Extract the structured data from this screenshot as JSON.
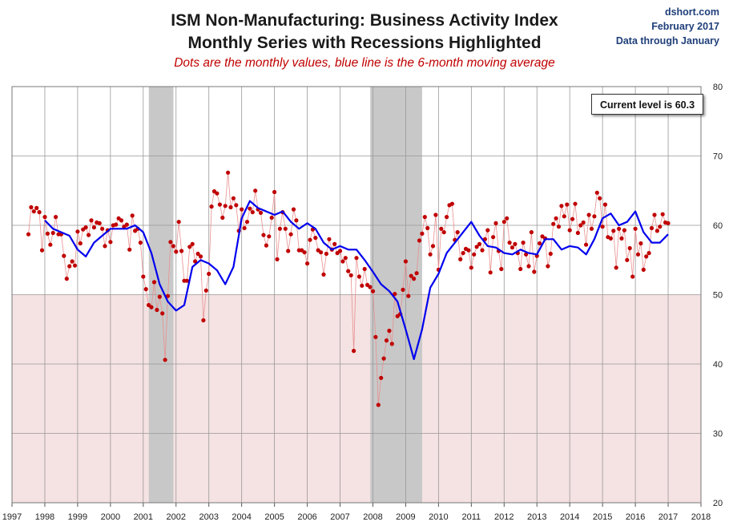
{
  "source": {
    "site": "dshort.com",
    "date": "February 2017",
    "through": "Data through January"
  },
  "chart_data": {
    "type": "line",
    "title": "ISM Non-Manufacturing: Business Activity Index",
    "title_line2": "Monthly Series with Recessions Highlighted",
    "subtitle": "Dots are the monthly values, blue line is the 6-month moving average",
    "annotation": "Current level is 60.3",
    "xlim": [
      1997,
      2018
    ],
    "ylim": [
      20,
      80
    ],
    "x_ticks": [
      "1997",
      "1998",
      "1999",
      "2000",
      "2001",
      "2002",
      "2003",
      "2004",
      "2005",
      "2006",
      "2007",
      "2008",
      "2009",
      "2010",
      "2011",
      "2012",
      "2013",
      "2014",
      "2015",
      "2016",
      "2017",
      "2018"
    ],
    "y_ticks": [
      "20",
      "30",
      "40",
      "50",
      "60",
      "70",
      "80"
    ],
    "contraction_below": 50,
    "recessions": [
      [
        2001.17,
        2001.92
      ],
      [
        2007.92,
        2009.5
      ]
    ],
    "colors": {
      "dots": "#c00000",
      "ma": "#0000ee",
      "recession": "#c8c8c8",
      "contraction": "#f5e2e2",
      "grid": "#999999"
    },
    "series": [
      {
        "name": "Monthly values",
        "start": 1997.5,
        "step": 0.08333,
        "values": [
          58.7,
          62.6,
          62.0,
          62.5,
          61.9,
          56.4,
          61.2,
          58.8,
          57.2,
          58.9,
          61.2,
          58.7,
          58.7,
          55.6,
          52.3,
          54.1,
          54.8,
          54.2,
          59.1,
          57.4,
          59.4,
          59.7,
          58.6,
          60.7,
          59.7,
          60.4,
          60.3,
          59.5,
          57.0,
          59.3,
          57.6,
          60.0,
          60.1,
          61.0,
          60.7,
          59.8,
          60.1,
          56.5,
          61.4,
          59.2,
          59.5,
          57.5,
          52.6,
          50.8,
          48.5,
          48.2,
          51.8,
          47.8,
          49.7,
          47.3,
          40.6,
          49.8,
          57.6,
          57.0,
          56.2,
          60.5,
          56.3,
          52.0,
          52.0,
          56.9,
          57.3,
          54.8,
          55.9,
          55.5,
          46.3,
          50.6,
          53.0,
          62.7,
          64.9,
          64.6,
          63.0,
          61.1,
          62.8,
          67.6,
          62.6,
          63.9,
          62.9,
          59.2,
          62.3,
          59.6,
          60.5,
          62.4,
          61.9,
          65.0,
          62.3,
          61.8,
          58.6,
          57.1,
          58.4,
          61.1,
          64.8,
          55.1,
          59.5,
          61.9,
          59.5,
          56.3,
          58.7,
          62.3,
          60.7,
          56.4,
          56.4,
          56.1,
          54.5,
          57.9,
          59.4,
          58.2,
          56.4,
          56.1,
          52.9,
          55.9,
          58.0,
          56.5,
          57.3,
          56.0,
          56.3,
          54.8,
          55.3,
          53.4,
          52.8,
          41.9,
          55.3,
          52.6,
          51.3,
          53.7,
          51.4,
          51.1,
          50.5,
          43.9,
          34.1,
          38.0,
          40.8,
          43.4,
          44.8,
          42.9,
          50.1,
          46.9,
          47.2,
          50.7,
          54.8,
          49.8,
          52.7,
          52.3,
          53.1,
          57.8,
          58.8,
          61.2,
          59.6,
          55.8,
          57.0,
          61.5,
          53.6,
          59.5,
          59.0,
          61.2,
          62.9,
          63.1,
          57.9,
          59.0,
          55.1,
          56.0,
          56.6,
          56.4,
          53.9,
          55.8,
          56.9,
          57.3,
          56.4,
          58.0,
          59.3,
          53.2,
          58.3,
          60.3,
          56.3,
          53.7,
          60.5,
          61.0,
          57.5,
          56.8,
          57.3,
          56.0,
          53.7,
          57.5,
          55.8,
          54.1,
          59.0,
          53.3,
          55.6,
          57.4,
          58.4,
          58.1,
          54.1,
          55.9,
          60.2,
          61.0,
          59.8,
          62.8,
          61.3,
          63.0,
          59.3,
          60.9,
          63.1,
          58.9,
          60.0,
          60.4,
          57.2,
          61.5,
          59.5,
          61.3,
          64.7,
          63.9,
          59.8,
          63.0,
          58.3,
          58.1,
          59.2,
          53.9,
          59.5,
          58.1,
          59.3,
          55.0,
          56.7,
          52.6,
          59.5,
          55.8,
          57.4,
          53.6,
          55.5,
          56.0,
          59.6,
          61.5,
          59.2,
          59.8,
          61.6,
          60.4,
          60.3
        ]
      },
      {
        "name": "6-month moving average",
        "x": [
          1998.0,
          1998.25,
          1998.5,
          1998.75,
          1999.0,
          1999.25,
          1999.5,
          1999.75,
          2000.0,
          2000.25,
          2000.5,
          2000.75,
          2001.0,
          2001.25,
          2001.5,
          2001.75,
          2002.0,
          2002.25,
          2002.5,
          2002.75,
          2003.0,
          2003.25,
          2003.5,
          2003.75,
          2004.0,
          2004.25,
          2004.5,
          2004.75,
          2005.0,
          2005.25,
          2005.5,
          2005.75,
          2006.0,
          2006.25,
          2006.5,
          2006.75,
          2007.0,
          2007.25,
          2007.5,
          2007.75,
          2008.0,
          2008.25,
          2008.5,
          2008.75,
          2009.0,
          2009.25,
          2009.5,
          2009.75,
          2010.0,
          2010.25,
          2010.5,
          2010.75,
          2011.0,
          2011.25,
          2011.5,
          2011.75,
          2012.0,
          2012.25,
          2012.5,
          2012.75,
          2013.0,
          2013.25,
          2013.5,
          2013.75,
          2014.0,
          2014.25,
          2014.5,
          2014.75,
          2015.0,
          2015.25,
          2015.5,
          2015.75,
          2016.0,
          2016.25,
          2016.5,
          2016.75,
          2017.0
        ],
        "values": [
          60.7,
          59.5,
          59.0,
          58.5,
          56.5,
          55.5,
          57.5,
          58.5,
          59.5,
          59.5,
          59.5,
          60.0,
          59.0,
          56.0,
          51.5,
          49.0,
          47.7,
          48.5,
          54.0,
          55.0,
          54.5,
          53.5,
          51.5,
          54.0,
          61.0,
          63.5,
          62.5,
          62.0,
          61.5,
          62.0,
          60.5,
          59.5,
          60.3,
          59.5,
          57.5,
          56.5,
          57.0,
          56.5,
          56.5,
          55.0,
          53.3,
          51.5,
          50.5,
          49.0,
          45.0,
          40.7,
          45.0,
          51.0,
          53.0,
          56.0,
          57.5,
          59.0,
          60.5,
          58.5,
          57.0,
          56.8,
          56.0,
          55.8,
          56.5,
          56.0,
          55.8,
          58.0,
          58.0,
          56.5,
          57.0,
          56.8,
          55.8,
          58.0,
          61.0,
          61.7,
          60.0,
          60.5,
          62.0,
          59.0,
          57.5,
          57.5,
          58.7
        ]
      }
    ]
  }
}
